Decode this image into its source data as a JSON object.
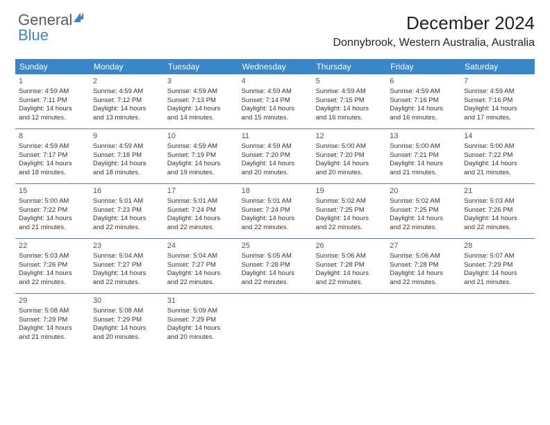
{
  "brand": {
    "part1": "General",
    "part2": "Blue"
  },
  "title": "December 2024",
  "location": "Donnybrook, Western Australia, Australia",
  "weekdays": [
    "Sunday",
    "Monday",
    "Tuesday",
    "Wednesday",
    "Thursday",
    "Friday",
    "Saturday"
  ],
  "colors": {
    "header_bg": "#3b86c6",
    "header_text": "#ffffff",
    "rule": "#3b86c6",
    "text": "#333333"
  },
  "weeks": [
    [
      {
        "n": "1",
        "sr": "Sunrise: 4:59 AM",
        "ss": "Sunset: 7:11 PM",
        "d1": "Daylight: 14 hours",
        "d2": "and 12 minutes."
      },
      {
        "n": "2",
        "sr": "Sunrise: 4:59 AM",
        "ss": "Sunset: 7:12 PM",
        "d1": "Daylight: 14 hours",
        "d2": "and 13 minutes."
      },
      {
        "n": "3",
        "sr": "Sunrise: 4:59 AM",
        "ss": "Sunset: 7:13 PM",
        "d1": "Daylight: 14 hours",
        "d2": "and 14 minutes."
      },
      {
        "n": "4",
        "sr": "Sunrise: 4:59 AM",
        "ss": "Sunset: 7:14 PM",
        "d1": "Daylight: 14 hours",
        "d2": "and 15 minutes."
      },
      {
        "n": "5",
        "sr": "Sunrise: 4:59 AM",
        "ss": "Sunset: 7:15 PM",
        "d1": "Daylight: 14 hours",
        "d2": "and 16 minutes."
      },
      {
        "n": "6",
        "sr": "Sunrise: 4:59 AM",
        "ss": "Sunset: 7:16 PM",
        "d1": "Daylight: 14 hours",
        "d2": "and 16 minutes."
      },
      {
        "n": "7",
        "sr": "Sunrise: 4:59 AM",
        "ss": "Sunset: 7:16 PM",
        "d1": "Daylight: 14 hours",
        "d2": "and 17 minutes."
      }
    ],
    [
      {
        "n": "8",
        "sr": "Sunrise: 4:59 AM",
        "ss": "Sunset: 7:17 PM",
        "d1": "Daylight: 14 hours",
        "d2": "and 18 minutes."
      },
      {
        "n": "9",
        "sr": "Sunrise: 4:59 AM",
        "ss": "Sunset: 7:18 PM",
        "d1": "Daylight: 14 hours",
        "d2": "and 18 minutes."
      },
      {
        "n": "10",
        "sr": "Sunrise: 4:59 AM",
        "ss": "Sunset: 7:19 PM",
        "d1": "Daylight: 14 hours",
        "d2": "and 19 minutes."
      },
      {
        "n": "11",
        "sr": "Sunrise: 4:59 AM",
        "ss": "Sunset: 7:20 PM",
        "d1": "Daylight: 14 hours",
        "d2": "and 20 minutes."
      },
      {
        "n": "12",
        "sr": "Sunrise: 5:00 AM",
        "ss": "Sunset: 7:20 PM",
        "d1": "Daylight: 14 hours",
        "d2": "and 20 minutes."
      },
      {
        "n": "13",
        "sr": "Sunrise: 5:00 AM",
        "ss": "Sunset: 7:21 PM",
        "d1": "Daylight: 14 hours",
        "d2": "and 21 minutes."
      },
      {
        "n": "14",
        "sr": "Sunrise: 5:00 AM",
        "ss": "Sunset: 7:22 PM",
        "d1": "Daylight: 14 hours",
        "d2": "and 21 minutes."
      }
    ],
    [
      {
        "n": "15",
        "sr": "Sunrise: 5:00 AM",
        "ss": "Sunset: 7:22 PM",
        "d1": "Daylight: 14 hours",
        "d2": "and 21 minutes."
      },
      {
        "n": "16",
        "sr": "Sunrise: 5:01 AM",
        "ss": "Sunset: 7:23 PM",
        "d1": "Daylight: 14 hours",
        "d2": "and 22 minutes."
      },
      {
        "n": "17",
        "sr": "Sunrise: 5:01 AM",
        "ss": "Sunset: 7:24 PM",
        "d1": "Daylight: 14 hours",
        "d2": "and 22 minutes."
      },
      {
        "n": "18",
        "sr": "Sunrise: 5:01 AM",
        "ss": "Sunset: 7:24 PM",
        "d1": "Daylight: 14 hours",
        "d2": "and 22 minutes."
      },
      {
        "n": "19",
        "sr": "Sunrise: 5:02 AM",
        "ss": "Sunset: 7:25 PM",
        "d1": "Daylight: 14 hours",
        "d2": "and 22 minutes."
      },
      {
        "n": "20",
        "sr": "Sunrise: 5:02 AM",
        "ss": "Sunset: 7:25 PM",
        "d1": "Daylight: 14 hours",
        "d2": "and 22 minutes."
      },
      {
        "n": "21",
        "sr": "Sunrise: 5:03 AM",
        "ss": "Sunset: 7:26 PM",
        "d1": "Daylight: 14 hours",
        "d2": "and 22 minutes."
      }
    ],
    [
      {
        "n": "22",
        "sr": "Sunrise: 5:03 AM",
        "ss": "Sunset: 7:26 PM",
        "d1": "Daylight: 14 hours",
        "d2": "and 22 minutes."
      },
      {
        "n": "23",
        "sr": "Sunrise: 5:04 AM",
        "ss": "Sunset: 7:27 PM",
        "d1": "Daylight: 14 hours",
        "d2": "and 22 minutes."
      },
      {
        "n": "24",
        "sr": "Sunrise: 5:04 AM",
        "ss": "Sunset: 7:27 PM",
        "d1": "Daylight: 14 hours",
        "d2": "and 22 minutes."
      },
      {
        "n": "25",
        "sr": "Sunrise: 5:05 AM",
        "ss": "Sunset: 7:28 PM",
        "d1": "Daylight: 14 hours",
        "d2": "and 22 minutes."
      },
      {
        "n": "26",
        "sr": "Sunrise: 5:06 AM",
        "ss": "Sunset: 7:28 PM",
        "d1": "Daylight: 14 hours",
        "d2": "and 22 minutes."
      },
      {
        "n": "27",
        "sr": "Sunrise: 5:06 AM",
        "ss": "Sunset: 7:28 PM",
        "d1": "Daylight: 14 hours",
        "d2": "and 22 minutes."
      },
      {
        "n": "28",
        "sr": "Sunrise: 5:07 AM",
        "ss": "Sunset: 7:29 PM",
        "d1": "Daylight: 14 hours",
        "d2": "and 21 minutes."
      }
    ],
    [
      {
        "n": "29",
        "sr": "Sunrise: 5:08 AM",
        "ss": "Sunset: 7:29 PM",
        "d1": "Daylight: 14 hours",
        "d2": "and 21 minutes."
      },
      {
        "n": "30",
        "sr": "Sunrise: 5:08 AM",
        "ss": "Sunset: 7:29 PM",
        "d1": "Daylight: 14 hours",
        "d2": "and 20 minutes."
      },
      {
        "n": "31",
        "sr": "Sunrise: 5:09 AM",
        "ss": "Sunset: 7:29 PM",
        "d1": "Daylight: 14 hours",
        "d2": "and 20 minutes."
      },
      null,
      null,
      null,
      null
    ]
  ]
}
